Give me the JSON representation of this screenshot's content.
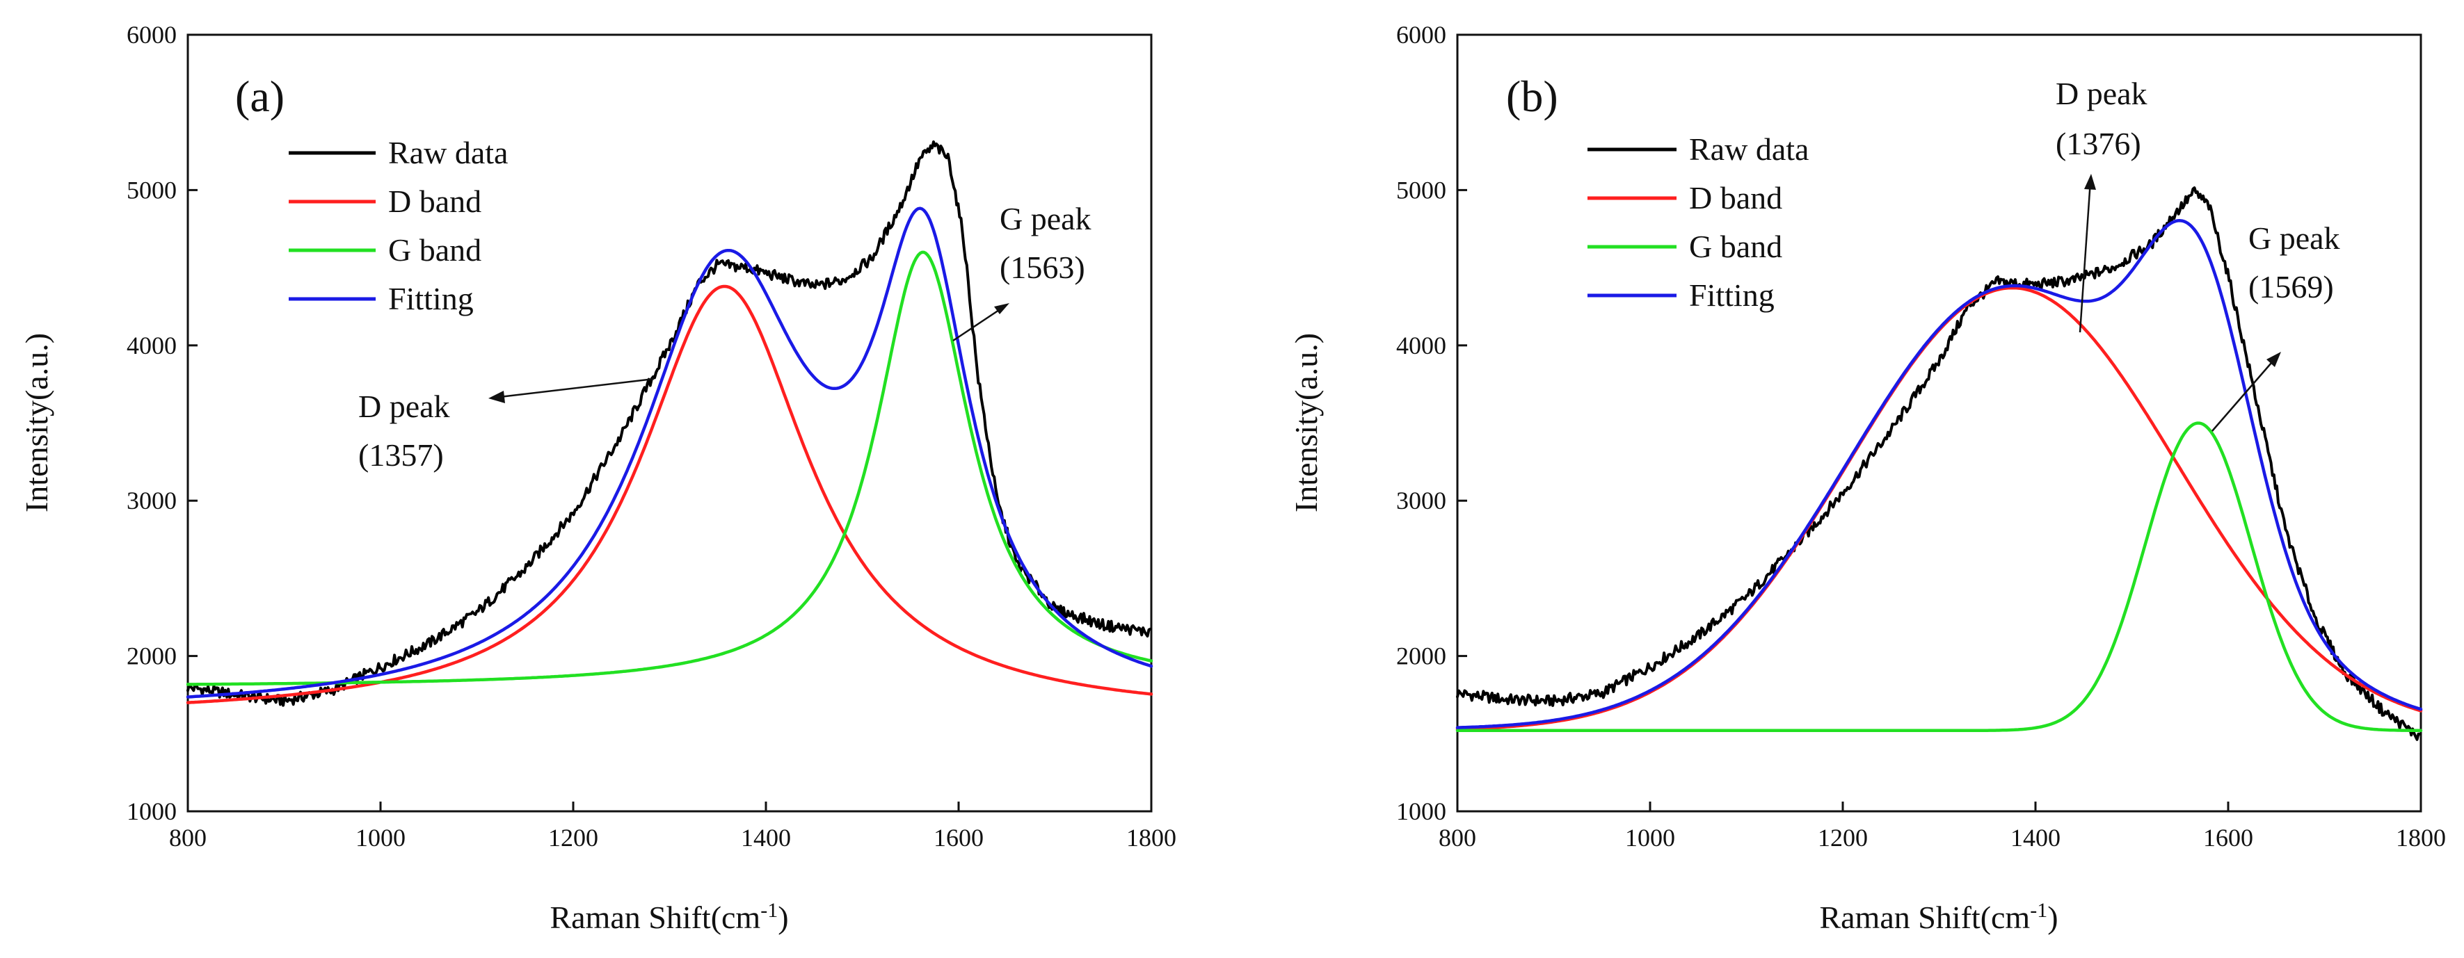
{
  "colors": {
    "raw": "#000000",
    "d_band": "#ff1f1f",
    "g_band": "#22e022",
    "fitting": "#1a1ae6",
    "axis": "#111111"
  },
  "chart_data": [
    {
      "id": "a",
      "type": "line",
      "panel_label": "(a)",
      "xlabel": "Raman Shift(cm",
      "xlabel_sup": "-1",
      "xlabel_end": ")",
      "ylabel": "Intensity(a.u.)",
      "xlim": [
        800,
        1800
      ],
      "ylim": [
        1000,
        6000
      ],
      "x_ticks": [
        800,
        1000,
        1200,
        1400,
        1600,
        1800
      ],
      "y_ticks": [
        1000,
        2000,
        3000,
        4000,
        5000,
        6000
      ],
      "legend": [
        "Raw data",
        "D band",
        "G band",
        "Fitting"
      ],
      "legend_position": "upper-left",
      "baseline": 1600,
      "bands": [
        {
          "name": "D band",
          "shape": "lorentz",
          "center": 1357,
          "fwhm": 215,
          "area_height": 2780,
          "baseline": 1600
        },
        {
          "name": "G band",
          "shape": "lorentz",
          "center": 1563,
          "fwhm": 120,
          "area_height": 2800,
          "baseline": 1800
        }
      ],
      "fitting": {
        "center_d": 1357,
        "fwhm_d": 215,
        "amp_d": 2780,
        "center_g": 1563,
        "fwhm_g": 120,
        "amp_g": 2800,
        "baseline": 1600
      },
      "raw_points": [
        [
          800,
          1800
        ],
        [
          850,
          1750
        ],
        [
          900,
          1710
        ],
        [
          950,
          1780
        ],
        [
          1000,
          1930
        ],
        [
          1050,
          2080
        ],
        [
          1100,
          2280
        ],
        [
          1150,
          2560
        ],
        [
          1200,
          2920
        ],
        [
          1250,
          3420
        ],
        [
          1300,
          4000
        ],
        [
          1330,
          4400
        ],
        [
          1350,
          4520
        ],
        [
          1380,
          4500
        ],
        [
          1420,
          4430
        ],
        [
          1450,
          4380
        ],
        [
          1480,
          4420
        ],
        [
          1510,
          4560
        ],
        [
          1540,
          4900
        ],
        [
          1560,
          5200
        ],
        [
          1575,
          5290
        ],
        [
          1590,
          5200
        ],
        [
          1605,
          4700
        ],
        [
          1620,
          3800
        ],
        [
          1640,
          3000
        ],
        [
          1660,
          2600
        ],
        [
          1700,
          2300
        ],
        [
          1750,
          2200
        ],
        [
          1800,
          2150
        ]
      ],
      "annotations": [
        {
          "label": "D peak",
          "value": "(1357)",
          "text_pos": "left-of-peak"
        },
        {
          "label": "G peak",
          "value": "(1563)",
          "text_pos": "right-of-peak"
        }
      ]
    },
    {
      "id": "b",
      "type": "line",
      "panel_label": "(b)",
      "xlabel": "Raman Shift(cm",
      "xlabel_sup": "-1",
      "xlabel_end": ")",
      "ylabel": "Intensity(a.u.)",
      "xlim": [
        800,
        1800
      ],
      "ylim": [
        1000,
        6000
      ],
      "x_ticks": [
        800,
        1000,
        1200,
        1400,
        1600,
        1800
      ],
      "y_ticks": [
        1000,
        2000,
        3000,
        4000,
        5000,
        6000
      ],
      "legend": [
        "Raw data",
        "D band",
        "G band",
        "Fitting"
      ],
      "legend_position": "upper-left",
      "bands": [
        {
          "name": "D band",
          "shape": "gauss",
          "center": 1376,
          "sigma": 170,
          "amp": 2850,
          "baseline": 1520
        },
        {
          "name": "G band",
          "shape": "gauss",
          "center": 1569,
          "sigma": 55,
          "amp": 1980,
          "baseline": 1520
        }
      ],
      "raw_points": [
        [
          800,
          1760
        ],
        [
          850,
          1720
        ],
        [
          900,
          1710
        ],
        [
          950,
          1760
        ],
        [
          1000,
          1930
        ],
        [
          1050,
          2130
        ],
        [
          1100,
          2380
        ],
        [
          1150,
          2700
        ],
        [
          1200,
          3050
        ],
        [
          1250,
          3450
        ],
        [
          1300,
          3900
        ],
        [
          1330,
          4250
        ],
        [
          1360,
          4410
        ],
        [
          1400,
          4390
        ],
        [
          1440,
          4420
        ],
        [
          1480,
          4500
        ],
        [
          1520,
          4650
        ],
        [
          1545,
          4850
        ],
        [
          1565,
          4990
        ],
        [
          1580,
          4900
        ],
        [
          1600,
          4450
        ],
        [
          1620,
          3900
        ],
        [
          1640,
          3350
        ],
        [
          1660,
          2800
        ],
        [
          1690,
          2250
        ],
        [
          1720,
          1900
        ],
        [
          1760,
          1650
        ],
        [
          1800,
          1470
        ]
      ],
      "annotations": [
        {
          "label": "D peak",
          "value": "(1376)",
          "text_pos": "above-peak"
        },
        {
          "label": "G peak",
          "value": "(1569)",
          "text_pos": "right-of-peak"
        }
      ]
    }
  ]
}
